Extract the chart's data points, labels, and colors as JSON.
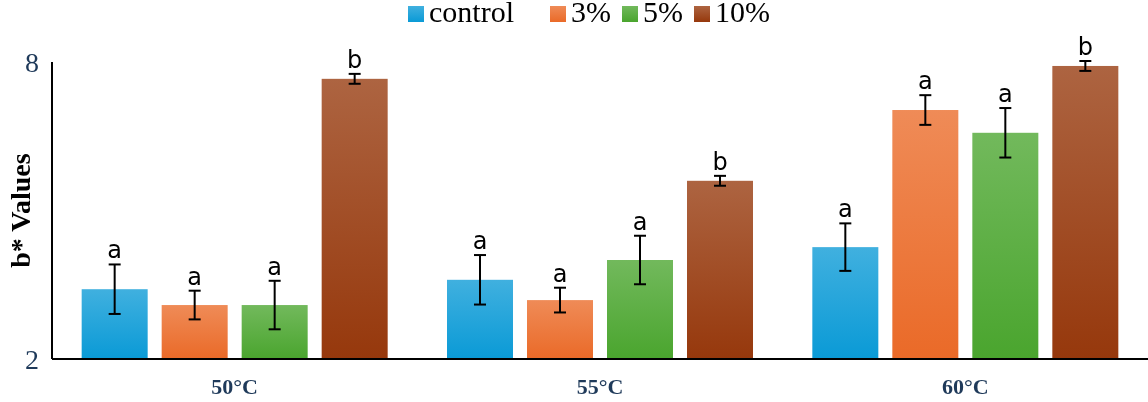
{
  "chart_data": {
    "type": "bar",
    "ylabel": "b* Values",
    "categories": [
      "50°C",
      "55°C",
      "60°C"
    ],
    "ylim": [
      2,
      8
    ],
    "yticks": [
      2,
      8
    ],
    "grid": false,
    "legend": "top",
    "series": [
      {
        "name": "control",
        "color": "#0a9ad6",
        "values": [
          3.41,
          3.6,
          4.26
        ],
        "errors": [
          0.5,
          0.5,
          0.48
        ],
        "value_labels": [
          "a",
          "a",
          "a"
        ]
      },
      {
        "name": "3%",
        "color": "#ea6a28",
        "values": [
          3.09,
          3.19,
          7.03
        ],
        "errors": [
          0.29,
          0.25,
          0.3
        ],
        "value_labels": [
          "a",
          "a",
          "a"
        ]
      },
      {
        "name": "5%",
        "color": "#4aa52e",
        "values": [
          3.09,
          4.0,
          6.57
        ],
        "errors": [
          0.49,
          0.49,
          0.5
        ],
        "value_labels": [
          "a",
          "a",
          "a"
        ]
      },
      {
        "name": "10%",
        "color": "#96380c",
        "values": [
          7.66,
          5.6,
          7.92
        ],
        "errors": [
          0.1,
          0.1,
          0.1
        ],
        "value_labels": [
          "b",
          "b",
          "b"
        ]
      }
    ]
  }
}
